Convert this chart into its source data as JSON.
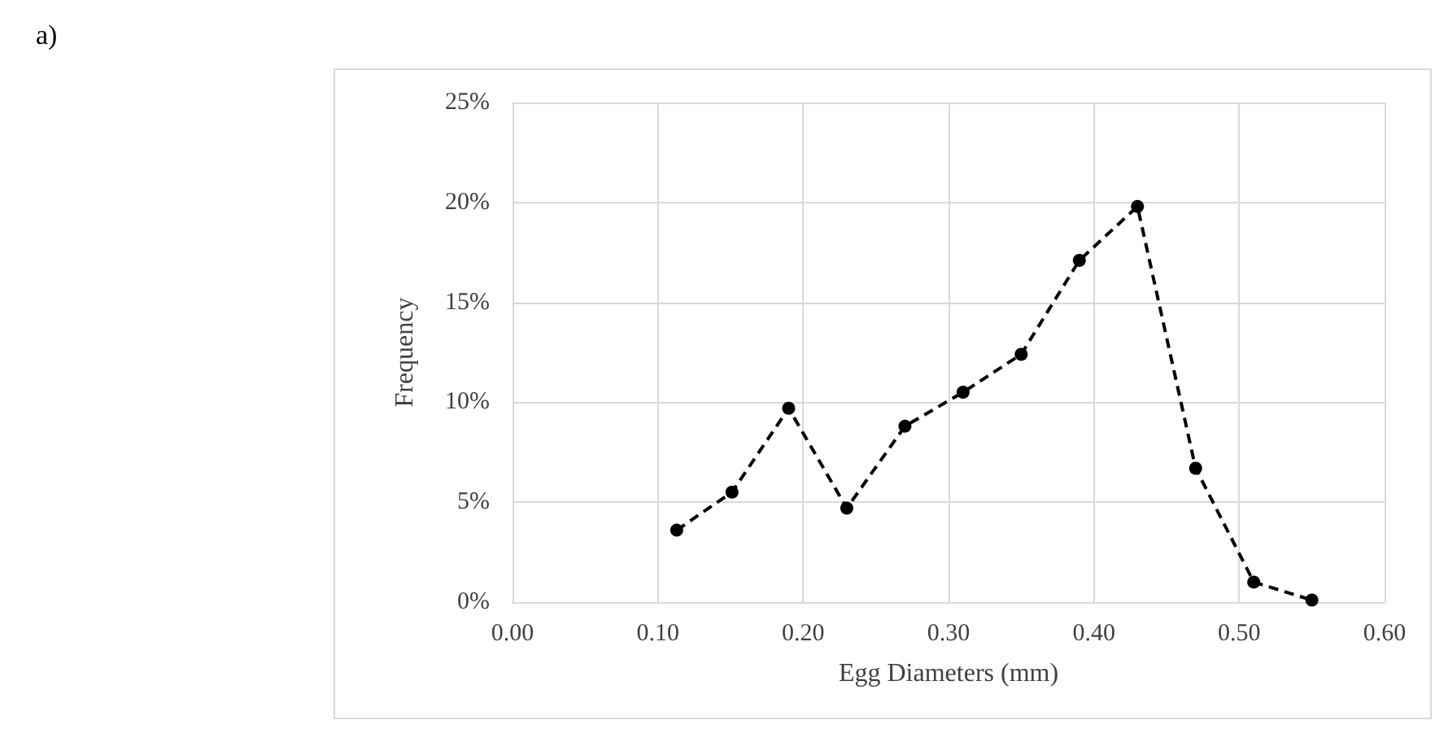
{
  "chart_data": {
    "type": "line",
    "xlabel": "Egg Diameters (mm)",
    "ylabel": "Frequency",
    "annotations": [
      "a)"
    ],
    "x": [
      0.113,
      0.151,
      0.19,
      0.23,
      0.27,
      0.31,
      0.35,
      0.39,
      0.43,
      0.47,
      0.51,
      0.55
    ],
    "series": [
      {
        "color": "#000000",
        "values": [
          3.6,
          5.5,
          9.7,
          4.7,
          8.8,
          10.5,
          12.4,
          17.1,
          19.8,
          6.7,
          1.0,
          0.1
        ]
      }
    ],
    "xlim": [
      0,
      0.6
    ],
    "xticks": [
      {
        "value": 0,
        "label": "0.00"
      },
      {
        "value": 0.1,
        "label": "0.10"
      },
      {
        "value": 0.2,
        "label": "0.20"
      },
      {
        "value": 0.3,
        "label": "0.30"
      },
      {
        "value": 0.4,
        "label": "0.40"
      },
      {
        "value": 0.5,
        "label": "0.50"
      },
      {
        "value": 0.6,
        "label": "0.60"
      }
    ],
    "ylim": [
      0,
      25
    ],
    "yticks": [
      {
        "value": 0,
        "label": "0%"
      },
      {
        "value": 5,
        "label": "5%"
      },
      {
        "value": 10,
        "label": "10%"
      },
      {
        "value": 15,
        "label": "15%"
      },
      {
        "value": 20,
        "label": "20%"
      },
      {
        "value": 25,
        "label": "25%"
      }
    ],
    "grid": true,
    "marker": "circle",
    "line_style": "dashed"
  }
}
